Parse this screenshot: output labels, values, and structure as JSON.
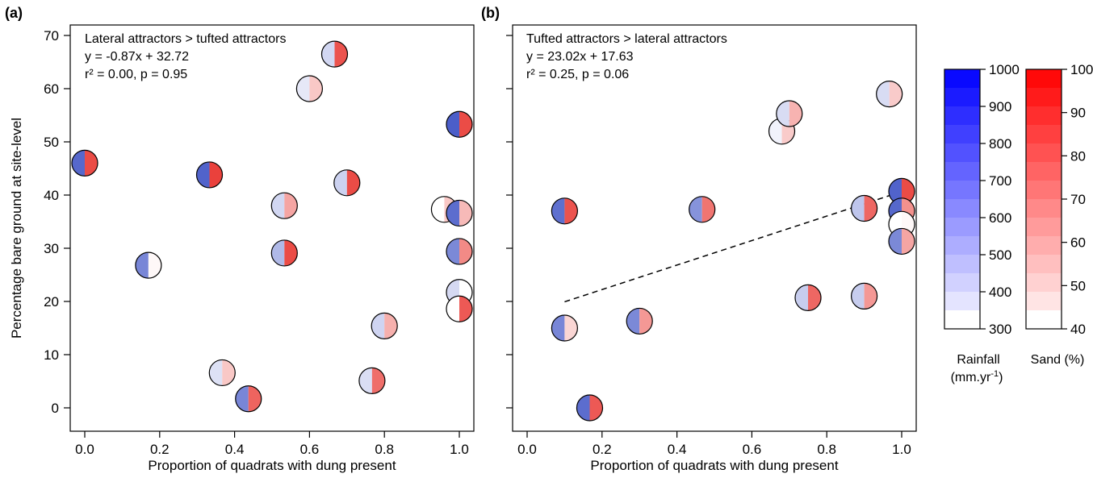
{
  "chart_data": [
    {
      "panel_label": "(a)",
      "type": "scatter",
      "ylabel": "Percentage bare ground at site-level",
      "xlabel": "Proportion of quadrats with dung present",
      "xlim": [
        0,
        1
      ],
      "ylim": [
        0,
        70
      ],
      "xticks": [
        "0.0",
        "0.2",
        "0.4",
        "0.6",
        "0.8",
        "1.0"
      ],
      "yticks": [
        "0",
        "10",
        "20",
        "30",
        "40",
        "50",
        "60",
        "70"
      ],
      "annotation": [
        "Lateral attractors > tufted attractors",
        "y = -0.87x + 32.72",
        "r² = 0.00, p = 0.95"
      ],
      "regression_line": false,
      "points": [
        {
          "x": 0.0,
          "y": 46.0,
          "rainfall": 900,
          "sand": 92
        },
        {
          "x": 0.17,
          "y": 26.8,
          "rainfall": 780,
          "sand": 42
        },
        {
          "x": 0.333,
          "y": 43.8,
          "rainfall": 920,
          "sand": 95
        },
        {
          "x": 0.367,
          "y": 6.6,
          "rainfall": 420,
          "sand": 56
        },
        {
          "x": 0.437,
          "y": 1.7,
          "rainfall": 780,
          "sand": 85
        },
        {
          "x": 0.533,
          "y": 38.0,
          "rainfall": 460,
          "sand": 66
        },
        {
          "x": 0.533,
          "y": 29.1,
          "rainfall": 580,
          "sand": 92
        },
        {
          "x": 0.6,
          "y": 60.0,
          "rainfall": 390,
          "sand": 56
        },
        {
          "x": 0.667,
          "y": 66.5,
          "rainfall": 460,
          "sand": 90
        },
        {
          "x": 0.7,
          "y": 42.3,
          "rainfall": 480,
          "sand": 92
        },
        {
          "x": 0.767,
          "y": 5.1,
          "rainfall": 430,
          "sand": 82
        },
        {
          "x": 0.8,
          "y": 15.4,
          "rainfall": 470,
          "sand": 63
        },
        {
          "x": 0.96,
          "y": 37.3,
          "rainfall": 300,
          "sand": 56
        },
        {
          "x": 1.0,
          "y": 53.3,
          "rainfall": 940,
          "sand": 92
        },
        {
          "x": 1.0,
          "y": 36.6,
          "rainfall": 880,
          "sand": 60
        },
        {
          "x": 1.0,
          "y": 29.4,
          "rainfall": 770,
          "sand": 74
        },
        {
          "x": 1.0,
          "y": 21.7,
          "rainfall": 450,
          "sand": 40
        },
        {
          "x": 1.0,
          "y": 18.6,
          "rainfall": 300,
          "sand": 88
        }
      ]
    },
    {
      "panel_label": "(b)",
      "type": "scatter",
      "xlabel": "Proportion of quadrats with dung present",
      "xlim": [
        0,
        1
      ],
      "ylim": [
        0,
        70
      ],
      "xticks": [
        "0.0",
        "0.2",
        "0.4",
        "0.6",
        "0.8",
        "1.0"
      ],
      "annotation": [
        "Tufted attractors > lateral attractors",
        "y = 23.02x + 17.63",
        "r² = 0.25, p = 0.06"
      ],
      "regression_line": true,
      "regression": {
        "slope": 23.02,
        "intercept": 17.63,
        "x_range": [
          0.1,
          1.0
        ]
      },
      "points": [
        {
          "x": 0.1,
          "y": 37.0,
          "rainfall": 870,
          "sand": 90
        },
        {
          "x": 0.1,
          "y": 15.0,
          "rainfall": 780,
          "sand": 52
        },
        {
          "x": 0.167,
          "y": 0.0,
          "rainfall": 880,
          "sand": 88
        },
        {
          "x": 0.3,
          "y": 16.3,
          "rainfall": 770,
          "sand": 70
        },
        {
          "x": 0.467,
          "y": 37.3,
          "rainfall": 730,
          "sand": 80
        },
        {
          "x": 0.68,
          "y": 52.0,
          "rainfall": 350,
          "sand": 55
        },
        {
          "x": 0.7,
          "y": 55.3,
          "rainfall": 440,
          "sand": 62
        },
        {
          "x": 0.75,
          "y": 20.7,
          "rainfall": 500,
          "sand": 84
        },
        {
          "x": 0.9,
          "y": 37.5,
          "rainfall": 530,
          "sand": 84
        },
        {
          "x": 0.9,
          "y": 21.0,
          "rainfall": 500,
          "sand": 70
        },
        {
          "x": 0.967,
          "y": 59.0,
          "rainfall": 440,
          "sand": 55
        },
        {
          "x": 1.0,
          "y": 40.7,
          "rainfall": 920,
          "sand": 92
        },
        {
          "x": 1.0,
          "y": 37.0,
          "rainfall": 900,
          "sand": 72
        },
        {
          "x": 1.0,
          "y": 34.5,
          "rainfall": 300,
          "sand": 42
        },
        {
          "x": 1.0,
          "y": 31.3,
          "rainfall": 770,
          "sand": 66
        }
      ]
    }
  ],
  "colorbars": [
    {
      "id": "rainfall",
      "label_line1": "Rainfall",
      "label_line2": "(mm.yr",
      "label_sup": "-1",
      "label_close": ")",
      "min": 300,
      "max": 1000,
      "ticks": [
        "1000",
        "900",
        "800",
        "700",
        "600",
        "500",
        "400",
        "300"
      ],
      "color_high": "#0000ff",
      "color_low": "#ffffff"
    },
    {
      "id": "sand",
      "label_line1": "Sand (%)",
      "min": 40,
      "max": 100,
      "ticks": [
        "100",
        "90",
        "80",
        "70",
        "60",
        "50",
        "40"
      ],
      "color_high": "#ff0000",
      "color_low": "#ffffff"
    }
  ],
  "colors": {
    "rain_max": "#3a4fc4",
    "sand_max": "#e8302a"
  }
}
